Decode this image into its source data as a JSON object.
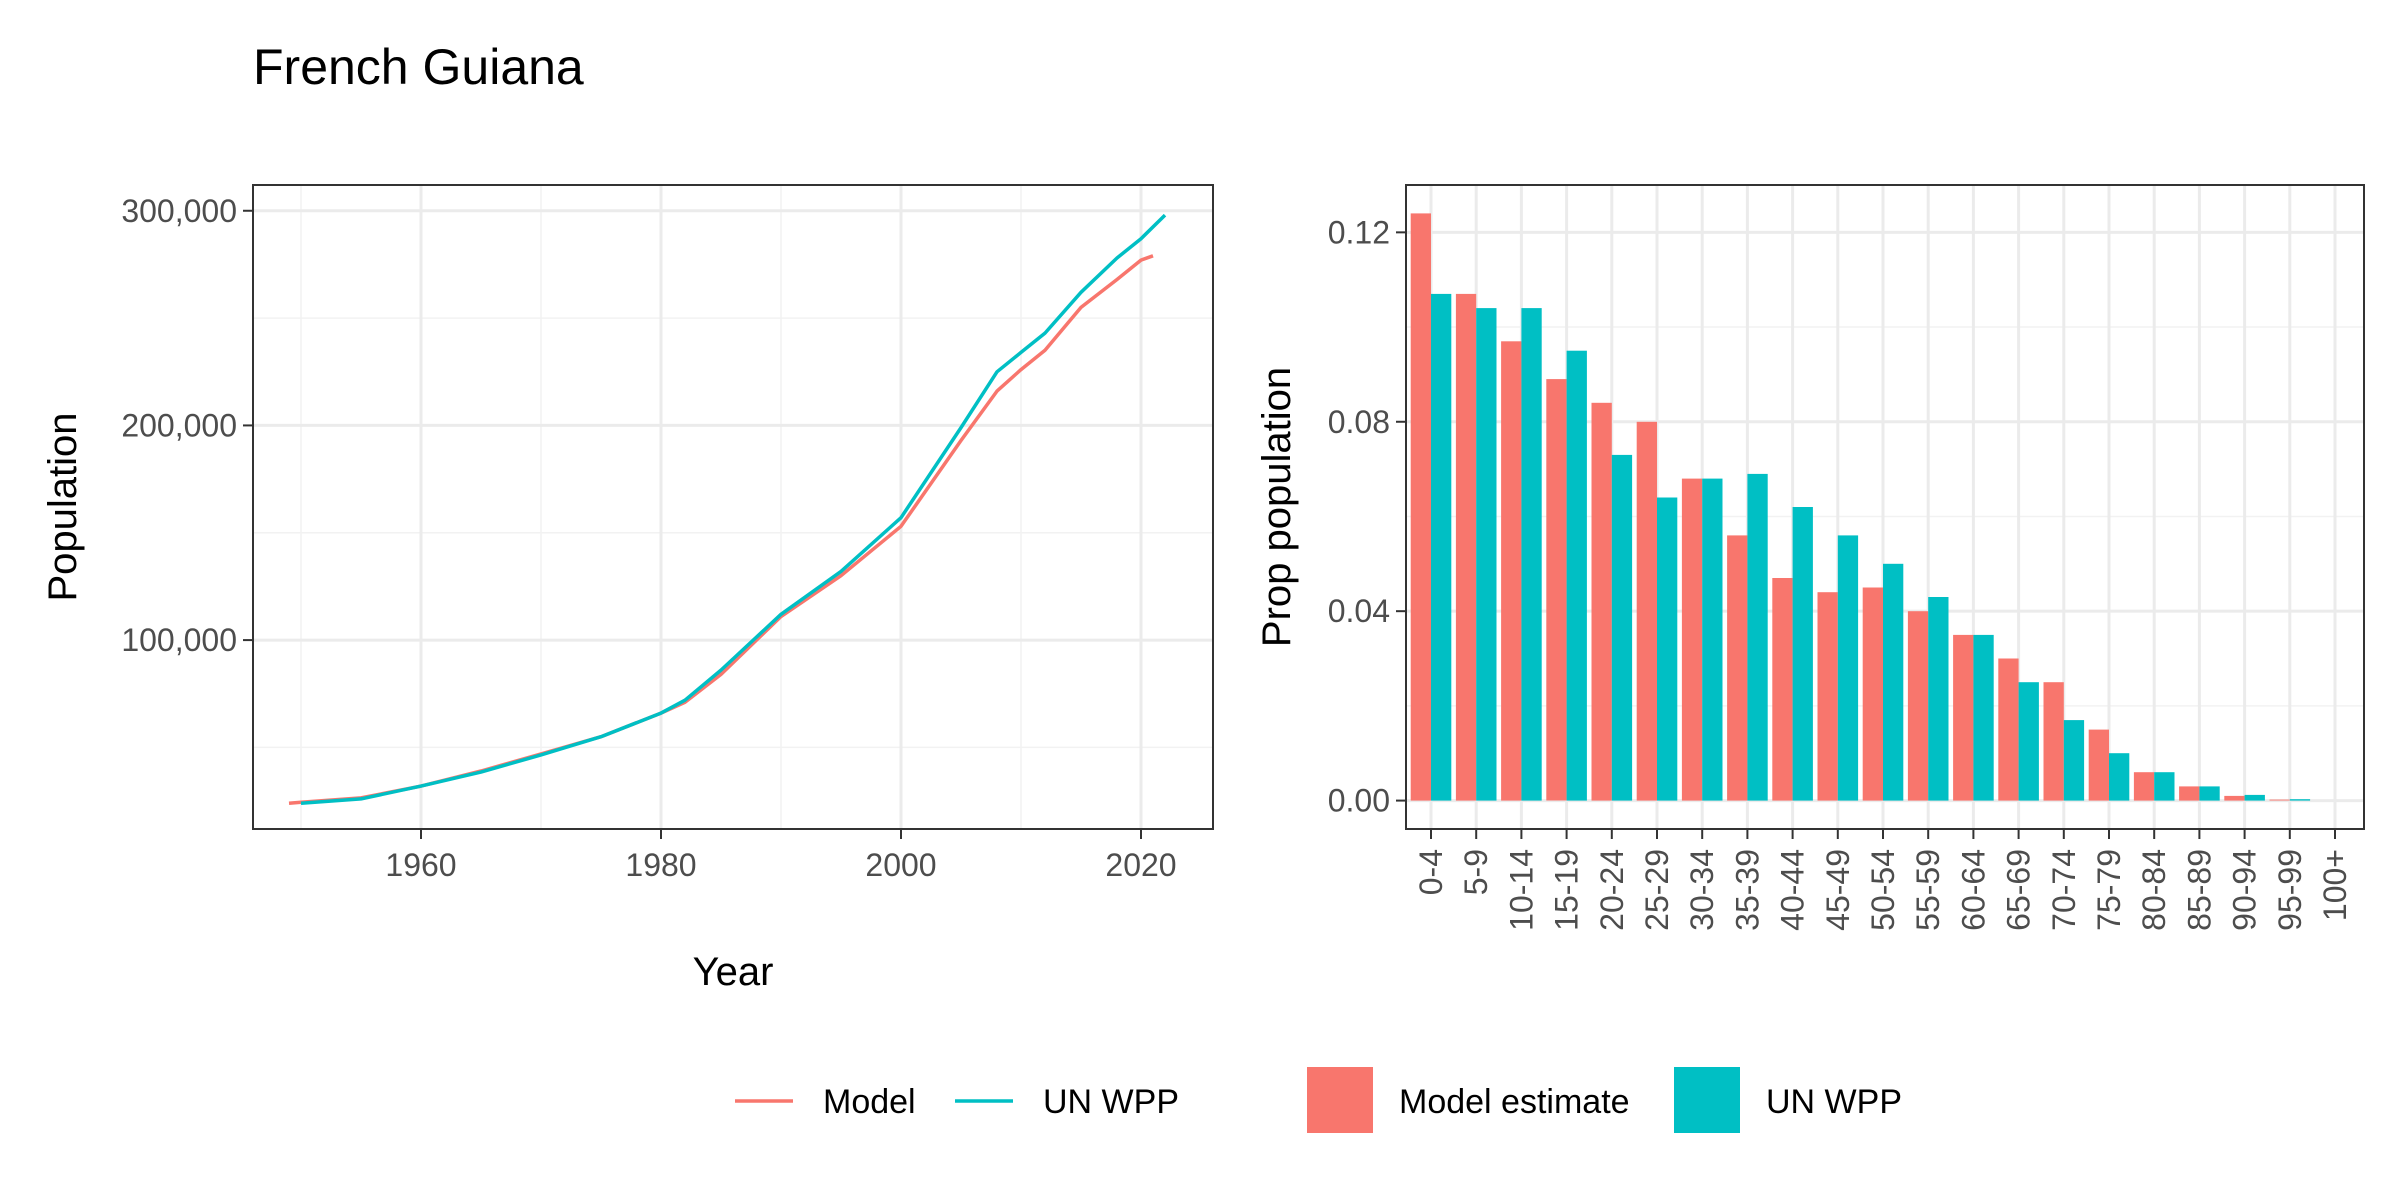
{
  "title": "French Guiana",
  "chart_data": [
    {
      "type": "line",
      "xlabel": "Year",
      "ylabel": "Population",
      "xlim": [
        1946,
        2026
      ],
      "ylim": [
        12000,
        312000
      ],
      "x_ticks": [
        1960,
        1980,
        2000,
        2020
      ],
      "x_tick_labels": [
        "1960",
        "1980",
        "2000",
        "2020"
      ],
      "y_ticks": [
        100000,
        200000,
        300000
      ],
      "y_tick_labels": [
        "100,000",
        "200,000",
        "300,000"
      ],
      "grid": true,
      "series": [
        {
          "name": "Model",
          "color": "#F8766D",
          "x": [
            1949,
            1950,
            1955,
            1960,
            1965,
            1970,
            1975,
            1980,
            1982,
            1985,
            1990,
            1995,
            2000,
            2005,
            2008,
            2010,
            2012,
            2015,
            2018,
            2020,
            2021
          ],
          "y": [
            24000,
            24500,
            26500,
            32000,
            39000,
            47000,
            55000,
            66000,
            71000,
            84000,
            111000,
            130000,
            153000,
            193000,
            216000,
            226000,
            235000,
            255000,
            268000,
            277000,
            279000
          ]
        },
        {
          "name": "UN WPP",
          "color": "#00BFC4",
          "x": [
            1950,
            1955,
            1960,
            1965,
            1970,
            1975,
            1980,
            1982,
            1985,
            1990,
            1995,
            2000,
            2005,
            2008,
            2010,
            2012,
            2015,
            2018,
            2020,
            2022
          ],
          "y": [
            24000,
            26000,
            32000,
            38500,
            46500,
            55000,
            66000,
            72000,
            86000,
            112000,
            132000,
            157000,
            199000,
            225000,
            234000,
            243000,
            262000,
            278000,
            287000,
            298000
          ]
        }
      ]
    },
    {
      "type": "bar",
      "xlabel": "",
      "ylabel": "Prop population",
      "ylim": [
        -0.006,
        0.13
      ],
      "y_ticks": [
        0,
        0.04,
        0.08,
        0.12
      ],
      "y_tick_labels": [
        "0.00",
        "0.04",
        "0.08",
        "0.12"
      ],
      "grid": true,
      "categories": [
        "0-4",
        "5-9",
        "10-14",
        "15-19",
        "20-24",
        "25-29",
        "30-34",
        "35-39",
        "40-44",
        "45-49",
        "50-54",
        "55-59",
        "60-64",
        "65-69",
        "70-74",
        "75-79",
        "80-84",
        "85-89",
        "90-94",
        "95-99",
        "100+"
      ],
      "series": [
        {
          "name": "Model estimate",
          "color": "#F8766D",
          "values": [
            0.124,
            0.107,
            0.097,
            0.089,
            0.084,
            0.08,
            0.068,
            0.056,
            0.047,
            0.044,
            0.045,
            0.04,
            0.035,
            0.03,
            0.025,
            0.015,
            0.006,
            0.003,
            0.001,
            0.0002,
            0.0
          ]
        },
        {
          "name": "UN WPP",
          "color": "#00BFC4",
          "values": [
            0.107,
            0.104,
            0.104,
            0.095,
            0.073,
            0.064,
            0.068,
            0.069,
            0.062,
            0.056,
            0.05,
            0.043,
            0.035,
            0.025,
            0.017,
            0.01,
            0.006,
            0.003,
            0.0012,
            0.0003,
            0.0
          ]
        }
      ]
    }
  ],
  "legend_line": {
    "items": [
      {
        "label": "Model",
        "color": "#F8766D"
      },
      {
        "label": "UN WPP",
        "color": "#00BFC4"
      }
    ]
  },
  "legend_bar": {
    "items": [
      {
        "label": "Model estimate",
        "color": "#F8766D"
      },
      {
        "label": "UN WPP",
        "color": "#00BFC4"
      }
    ]
  }
}
